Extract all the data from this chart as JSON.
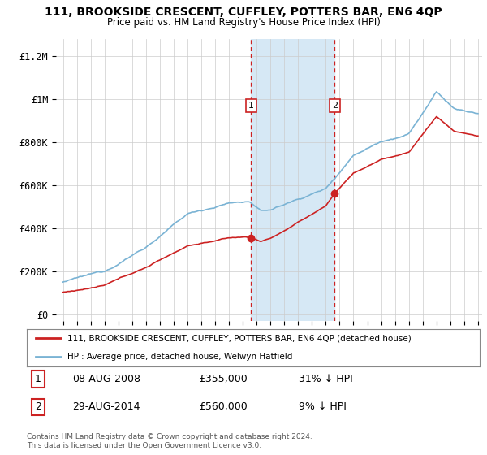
{
  "title": "111, BROOKSIDE CRESCENT, CUFFLEY, POTTERS BAR, EN6 4QP",
  "subtitle": "Price paid vs. HM Land Registry's House Price Index (HPI)",
  "ylabel_ticks": [
    "£0",
    "£200K",
    "£400K",
    "£600K",
    "£800K",
    "£1M",
    "£1.2M"
  ],
  "ytick_vals": [
    0,
    200000,
    400000,
    600000,
    800000,
    1000000,
    1200000
  ],
  "ylim": [
    -30000,
    1280000
  ],
  "xlim_start": 1994.5,
  "xlim_end": 2025.3,
  "hpi_color": "#7ab3d4",
  "sale_color": "#cc2222",
  "shade_color": "#d6e8f5",
  "vline_color": "#cc2222",
  "bg_color": "#ffffff",
  "grid_color": "#cccccc",
  "sale1_x": 2008.6,
  "sale1_y": 355000,
  "sale2_x": 2014.65,
  "sale2_y": 560000,
  "legend_line1": "111, BROOKSIDE CRESCENT, CUFFLEY, POTTERS BAR, EN6 4QP (detached house)",
  "legend_line2": "HPI: Average price, detached house, Welwyn Hatfield",
  "annotation1_label": "1",
  "annotation1_date": "08-AUG-2008",
  "annotation1_price": "£355,000",
  "annotation1_hpi": "31% ↓ HPI",
  "annotation2_label": "2",
  "annotation2_date": "29-AUG-2014",
  "annotation2_price": "£560,000",
  "annotation2_hpi": "9% ↓ HPI",
  "footer": "Contains HM Land Registry data © Crown copyright and database right 2024.\nThis data is licensed under the Open Government Licence v3.0.",
  "xtick_years": [
    1995,
    1996,
    1997,
    1998,
    1999,
    2000,
    2001,
    2002,
    2003,
    2004,
    2005,
    2006,
    2007,
    2008,
    2009,
    2010,
    2011,
    2012,
    2013,
    2014,
    2015,
    2016,
    2017,
    2018,
    2019,
    2020,
    2021,
    2022,
    2023,
    2024,
    2025
  ]
}
